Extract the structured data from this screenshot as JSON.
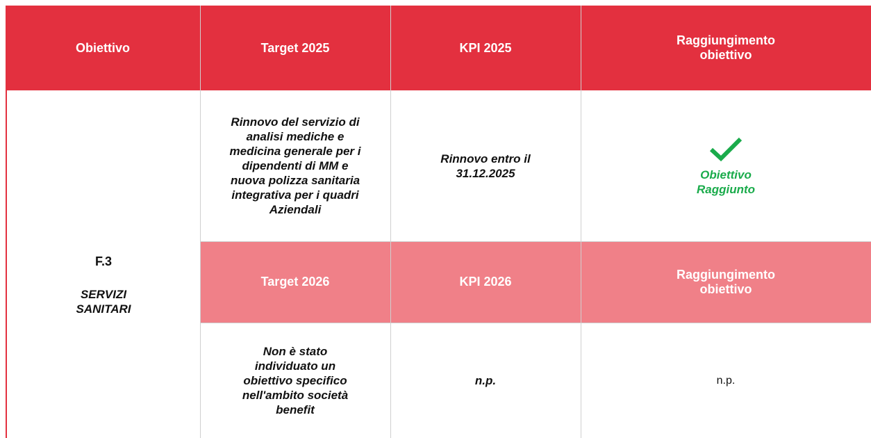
{
  "table": {
    "header": [
      "Obiettivo",
      "Target 2025",
      "KPI 2025",
      "Raggiungimento obiettivo"
    ],
    "objective": {
      "code": "F.3",
      "name": "SERVIZI SANITARI"
    },
    "row_2025": [
      "Rinnovo del servizio di analisi mediche e medicina generale per i dipendenti di MM e nuova polizza sanitaria integrativa per i quadri Aziendali",
      "Rinnovo entro il 31.12.2025",
      "Obiettivo Raggiunto"
    ],
    "header_2026": [
      "Target 2026",
      "KPI 2026",
      "Raggiungimento obiettivo"
    ],
    "row_2026": [
      "Non è stato individuato un obiettivo specifico nell'ambito società benefit",
      "n.p.",
      "n.p."
    ]
  }
}
